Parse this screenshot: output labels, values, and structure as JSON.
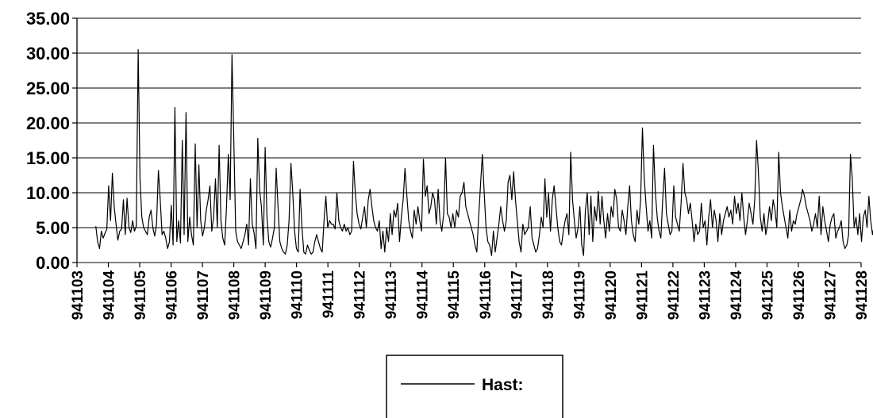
{
  "chart_data": {
    "type": "line",
    "x_categories": [
      "941103",
      "941104",
      "941105",
      "941106",
      "941107",
      "941108",
      "941109",
      "941110",
      "941111",
      "941112",
      "941113",
      "941114",
      "941115",
      "941116",
      "941117",
      "941118",
      "941119",
      "941120",
      "941121",
      "941122",
      "941123",
      "941124",
      "941125",
      "941126",
      "941127",
      "941128"
    ],
    "y_ticks": [
      "35.00",
      "30.00",
      "25.00",
      "20.00",
      "15.00",
      "10.00",
      "5.00",
      "0.00"
    ],
    "ylim": [
      0,
      35
    ],
    "grid": "horizontal",
    "legend_position": "bottom-center",
    "series": [
      {
        "name": "Hast:",
        "color": "#000000",
        "x_start": 0.6,
        "x_end": 25.6,
        "values": [
          5.2,
          3.0,
          2.0,
          4.5,
          3.5,
          4.2,
          4.8,
          11.0,
          6.0,
          12.8,
          8.0,
          5.5,
          3.2,
          4.5,
          4.8,
          9.0,
          4.0,
          9.2,
          5.0,
          4.3,
          6.0,
          4.5,
          5.2,
          30.5,
          12.0,
          6.5,
          5.0,
          4.5,
          4.0,
          6.5,
          7.5,
          5.0,
          3.8,
          5.5,
          13.2,
          9.0,
          4.0,
          4.5,
          3.5,
          2.0,
          3.0,
          8.2,
          2.5,
          22.2,
          3.0,
          6.0,
          2.8,
          17.5,
          4.0,
          21.5,
          3.0,
          6.5,
          4.0,
          2.5,
          17.0,
          5.0,
          14.0,
          6.0,
          3.8,
          5.0,
          7.5,
          9.0,
          11.0,
          4.5,
          6.5,
          12.0,
          5.0,
          16.8,
          6.0,
          3.5,
          2.5,
          8.0,
          15.5,
          9.0,
          29.8,
          17.0,
          4.5,
          3.0,
          2.5,
          2.0,
          3.0,
          4.0,
          5.5,
          2.5,
          12.0,
          5.5,
          4.2,
          2.0,
          17.8,
          10.5,
          8.0,
          2.5,
          16.5,
          6.5,
          3.0,
          2.2,
          3.5,
          5.0,
          13.5,
          8.0,
          3.0,
          2.0,
          1.5,
          1.2,
          2.5,
          6.0,
          14.2,
          10.0,
          4.5,
          2.0,
          1.5,
          10.5,
          5.0,
          1.5,
          1.2,
          2.5,
          1.8,
          1.2,
          1.5,
          3.0,
          4.0,
          3.0,
          2.0,
          1.5,
          6.0,
          9.5,
          5.0,
          6.0,
          5.5,
          5.5,
          4.8,
          10.0,
          6.0,
          5.0,
          4.5,
          5.5,
          4.5,
          5.0,
          4.0,
          4.5,
          14.5,
          10.0,
          7.0,
          5.5,
          4.8,
          6.5,
          8.0,
          5.0,
          9.0,
          10.5,
          8.0,
          6.0,
          5.0,
          4.5,
          6.0,
          2.0,
          4.5,
          1.5,
          5.0,
          3.0,
          7.0,
          4.0,
          7.5,
          6.5,
          8.5,
          3.0,
          6.5,
          9.0,
          13.5,
          9.5,
          6.0,
          4.5,
          3.5,
          7.5,
          5.5,
          8.0,
          6.0,
          4.5,
          14.8,
          9.5,
          11.0,
          7.0,
          8.0,
          10.0,
          9.0,
          5.5,
          10.5,
          6.0,
          4.5,
          7.0,
          15.0,
          7.0,
          6.5,
          5.0,
          7.0,
          5.0,
          7.5,
          6.5,
          9.5,
          10.0,
          11.5,
          8.0,
          7.0,
          6.0,
          5.0,
          4.0,
          2.5,
          1.5,
          6.5,
          11.0,
          15.5,
          10.0,
          5.0,
          3.0,
          2.5,
          1.0,
          4.5,
          1.5,
          3.5,
          5.5,
          8.0,
          6.0,
          4.5,
          6.0,
          11.5,
          12.5,
          9.0,
          13.0,
          9.0,
          6.0,
          3.0,
          1.5,
          5.5,
          4.0,
          4.5,
          5.0,
          8.0,
          3.5,
          2.5,
          1.5,
          2.0,
          4.0,
          6.5,
          5.0,
          12.0,
          6.5,
          10.0,
          4.5,
          9.0,
          11.0,
          8.0,
          5.0,
          3.0,
          2.5,
          4.5,
          6.0,
          7.0,
          4.0,
          15.8,
          9.0,
          6.0,
          3.5,
          5.0,
          8.0,
          2.5,
          1.0,
          7.5,
          10.0,
          4.0,
          9.5,
          3.0,
          8.0,
          6.0,
          10.2,
          5.5,
          9.5,
          6.0,
          3.5,
          7.0,
          4.5,
          8.0,
          6.5,
          10.5,
          9.0,
          5.0,
          4.5,
          7.5,
          6.0,
          4.0,
          8.0,
          11.0,
          6.0,
          4.0,
          3.0,
          7.5,
          5.5,
          9.0,
          19.3,
          12.0,
          8.0,
          4.5,
          6.0,
          3.5,
          16.8,
          10.0,
          6.5,
          4.5,
          3.5,
          9.0,
          13.5,
          7.0,
          5.5,
          4.0,
          4.5,
          11.0,
          6.5,
          5.5,
          4.5,
          8.5,
          14.2,
          10.0,
          9.0,
          7.0,
          8.5,
          6.0,
          3.0,
          5.5,
          4.0,
          4.5,
          8.5,
          5.0,
          6.0,
          2.5,
          6.5,
          9.0,
          5.0,
          7.5,
          6.0,
          3.0,
          7.0,
          4.0,
          6.0,
          7.0,
          8.0,
          6.5,
          7.5,
          5.5,
          9.5,
          7.0,
          8.5,
          6.0,
          10.0,
          6.5,
          4.0,
          6.0,
          8.5,
          7.0,
          5.5,
          9.0,
          17.5,
          13.0,
          6.5,
          4.5,
          7.0,
          4.0,
          5.5,
          8.0,
          6.0,
          9.0,
          7.5,
          5.0,
          15.8,
          10.0,
          8.0,
          6.5,
          5.0,
          3.5,
          7.5,
          4.5,
          6.0,
          5.5,
          7.0,
          8.0,
          9.0,
          10.5,
          9.5,
          8.0,
          7.0,
          6.0,
          4.5,
          5.5,
          7.0,
          5.0,
          9.5,
          4.0,
          8.0,
          6.0,
          4.5,
          3.0,
          5.5,
          6.5,
          7.0,
          3.5,
          4.5,
          5.0,
          6.0,
          3.0,
          2.0,
          2.5,
          4.0,
          15.5,
          12.0,
          5.0,
          6.5,
          4.0,
          7.0,
          3.0,
          6.5,
          7.5,
          5.0,
          9.5,
          6.0,
          4.0,
          5.5,
          6.0,
          5.0,
          5.5
        ]
      }
    ]
  }
}
